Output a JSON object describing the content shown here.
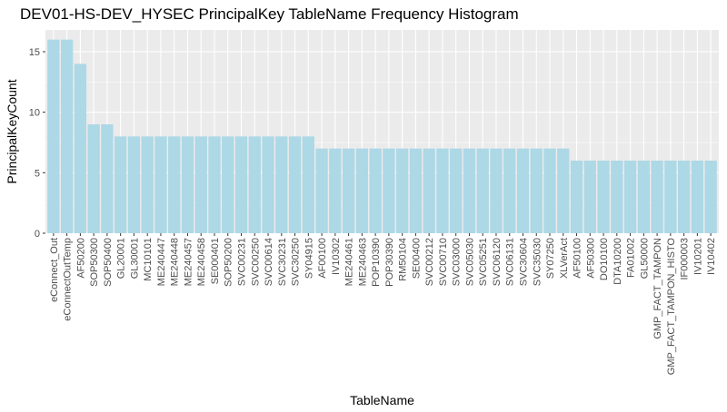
{
  "chart_data": {
    "type": "bar",
    "title": "DEV01-HS-DEV_HYSEC PrincipalKey TableName Frequency Histogram",
    "xlabel": "TableName",
    "ylabel": "PrincipalKeyCount",
    "ylim": [
      0,
      16.8
    ],
    "yticks": [
      0,
      5,
      10,
      15
    ],
    "grid": true,
    "bar_color": "#add8e6",
    "panel_color": "#ebebeb",
    "grid_color": "#ffffff",
    "categories": [
      "eConnect_Out",
      "eConnectOutTemp",
      "AF50200",
      "SOP50300",
      "SOP50400",
      "GL20001",
      "GL30001",
      "MC10101",
      "ME240447",
      "ME240448",
      "ME240457",
      "ME240458",
      "SE000401",
      "SOP50200",
      "SVC00231",
      "SVC00250",
      "SVC00614",
      "SVC30231",
      "SVC30250",
      "SY04915",
      "AF00100",
      "IV10302",
      "ME240461",
      "ME240463",
      "POP10390",
      "POP30390",
      "RM50104",
      "SE00400",
      "SVC00212",
      "SVC00710",
      "SVC03000",
      "SVC05030",
      "SVC05251",
      "SVC06120",
      "SVC06131",
      "SVC30604",
      "SVC35030",
      "SY07250",
      "XLVerAct",
      "AF50100",
      "AF50300",
      "DO10100",
      "DTA10200",
      "FA01002",
      "GL50000",
      "GMP_FACT_TAMPON",
      "GMP_FACT_TAMPON_HISTO",
      "IF000003",
      "IV10201",
      "IV10402"
    ],
    "values": [
      16,
      16,
      14,
      9,
      9,
      8,
      8,
      8,
      8,
      8,
      8,
      8,
      8,
      8,
      8,
      8,
      8,
      8,
      8,
      8,
      7,
      7,
      7,
      7,
      7,
      7,
      7,
      7,
      7,
      7,
      7,
      7,
      7,
      7,
      7,
      7,
      7,
      7,
      7,
      6,
      6,
      6,
      6,
      6,
      6,
      6,
      6,
      6,
      6,
      6
    ]
  }
}
